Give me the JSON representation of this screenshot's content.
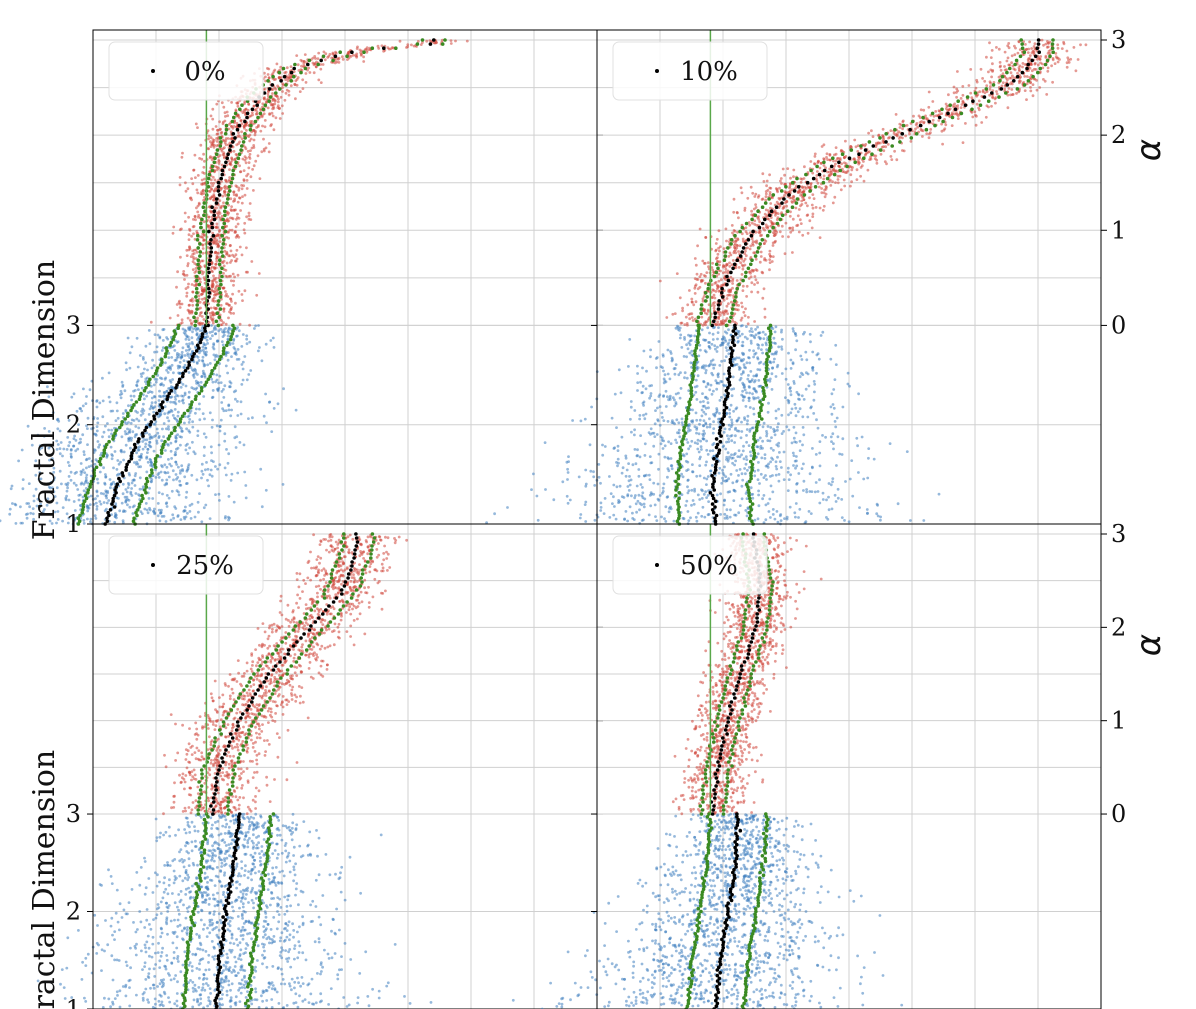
{
  "colors": {
    "upper_scatter": "#d0453a",
    "lower_scatter": "#3f7fbf",
    "median": "#000000",
    "quantile": "#3a8a22",
    "reference_line": "#5aa84a",
    "grid": "#d0d0d0",
    "axis": "#000000"
  },
  "figure": {
    "left_ylabel": "Fractal Dimension",
    "right_ylabel": "α"
  },
  "chart_data": [
    {
      "type": "scatter",
      "panel": "top-left",
      "legend": {
        "label": "0%",
        "placement": "top-left"
      },
      "x_reference": 0.45,
      "xlim": [
        0,
        2
      ],
      "grid_x": [
        0.25,
        0.5,
        0.75,
        1.0,
        1.25,
        1.5,
        1.75
      ],
      "upper": {
        "ylim": [
          0,
          3
        ],
        "ticks": [
          0,
          1,
          2,
          3
        ],
        "tick_labels": [
          "0",
          "1",
          "2",
          "3"
        ],
        "median": [
          [
            0.45,
            0.0
          ],
          [
            0.46,
            0.5
          ],
          [
            0.47,
            1.0
          ],
          [
            0.5,
            1.5
          ],
          [
            0.56,
            2.0
          ],
          [
            0.66,
            2.4
          ],
          [
            0.8,
            2.7
          ],
          [
            1.0,
            2.86
          ],
          [
            1.2,
            2.93
          ],
          [
            1.35,
            2.96
          ]
        ],
        "band_half_width": 0.045
      },
      "lower": {
        "ylim": [
          1,
          3
        ],
        "ticks": [
          1,
          2,
          3
        ],
        "tick_labels": [
          "1",
          "2",
          "3"
        ],
        "median": [
          [
            0.45,
            3.0
          ],
          [
            0.4,
            2.7
          ],
          [
            0.33,
            2.4
          ],
          [
            0.25,
            2.1
          ],
          [
            0.17,
            1.8
          ],
          [
            0.1,
            1.4
          ],
          [
            0.05,
            1.0
          ]
        ],
        "band_half_width": 0.07
      }
    },
    {
      "type": "scatter",
      "panel": "top-right",
      "legend": {
        "label": "10%",
        "placement": "top-left"
      },
      "x_reference": 0.45,
      "xlim": [
        0,
        2
      ],
      "grid_x": [
        0.25,
        0.5,
        0.75,
        1.0,
        1.25,
        1.5,
        1.75
      ],
      "upper": {
        "ylim": [
          0,
          3
        ],
        "ticks": [
          0,
          1,
          2,
          3
        ],
        "tick_labels": [
          "0",
          "1",
          "2",
          "3"
        ],
        "median": [
          [
            0.46,
            0.0
          ],
          [
            0.5,
            0.4
          ],
          [
            0.6,
            0.9
          ],
          [
            0.75,
            1.35
          ],
          [
            0.95,
            1.7
          ],
          [
            1.2,
            2.0
          ],
          [
            1.45,
            2.3
          ],
          [
            1.65,
            2.55
          ],
          [
            1.75,
            2.85
          ]
        ],
        "band_half_width": 0.06
      },
      "lower": {
        "ylim": [
          1,
          3
        ],
        "ticks": [
          1,
          2,
          3
        ],
        "tick_labels": [
          "",
          "",
          ""
        ],
        "median": [
          [
            0.55,
            3.0
          ],
          [
            0.53,
            2.6
          ],
          [
            0.51,
            2.2
          ],
          [
            0.48,
            1.8
          ],
          [
            0.46,
            1.4
          ],
          [
            0.47,
            1.0
          ]
        ],
        "band_half_width": 0.09
      }
    },
    {
      "type": "scatter",
      "panel": "bottom-left",
      "legend": {
        "label": "25%",
        "placement": "top-left"
      },
      "x_reference": 0.45,
      "xlim": [
        0,
        2
      ],
      "grid_x": [
        0.25,
        0.5,
        0.75,
        1.0,
        1.25,
        1.5,
        1.75
      ],
      "upper": {
        "ylim": [
          0,
          3
        ],
        "ticks": [
          0,
          1,
          2,
          3
        ],
        "tick_labels": [
          "0",
          "1",
          "2",
          "3"
        ],
        "median": [
          [
            0.47,
            0.0
          ],
          [
            0.5,
            0.5
          ],
          [
            0.58,
            1.0
          ],
          [
            0.7,
            1.5
          ],
          [
            0.86,
            2.0
          ],
          [
            0.98,
            2.35
          ],
          [
            1.03,
            2.7
          ],
          [
            1.05,
            2.9
          ]
        ],
        "band_half_width": 0.06
      },
      "lower": {
        "ylim": [
          1,
          3
        ],
        "ticks": [
          1,
          2,
          3
        ],
        "tick_labels": [
          "1",
          "2",
          "3"
        ],
        "median": [
          [
            0.58,
            3.0
          ],
          [
            0.56,
            2.5
          ],
          [
            0.53,
            2.0
          ],
          [
            0.5,
            1.5
          ],
          [
            0.49,
            1.0
          ]
        ],
        "band_half_width": 0.08
      }
    },
    {
      "type": "scatter",
      "panel": "bottom-right",
      "legend": {
        "label": "50%",
        "placement": "top-left"
      },
      "x_reference": 0.45,
      "xlim": [
        0,
        2
      ],
      "grid_x": [
        0.25,
        0.5,
        0.75,
        1.0,
        1.25,
        1.5,
        1.75
      ],
      "upper": {
        "ylim": [
          0,
          3
        ],
        "ticks": [
          0,
          1,
          2,
          3
        ],
        "tick_labels": [
          "0",
          "1",
          "2",
          "3"
        ],
        "median": [
          [
            0.46,
            0.0
          ],
          [
            0.48,
            0.5
          ],
          [
            0.52,
            1.0
          ],
          [
            0.57,
            1.5
          ],
          [
            0.63,
            2.0
          ],
          [
            0.65,
            2.5
          ],
          [
            0.62,
            2.9
          ]
        ],
        "band_half_width": 0.045
      },
      "lower": {
        "ylim": [
          1,
          3
        ],
        "ticks": [
          1,
          2,
          3
        ],
        "tick_labels": [
          "",
          "",
          ""
        ],
        "median": [
          [
            0.56,
            3.0
          ],
          [
            0.55,
            2.5
          ],
          [
            0.52,
            2.0
          ],
          [
            0.49,
            1.5
          ],
          [
            0.47,
            1.0
          ]
        ],
        "band_half_width": 0.07
      }
    }
  ]
}
